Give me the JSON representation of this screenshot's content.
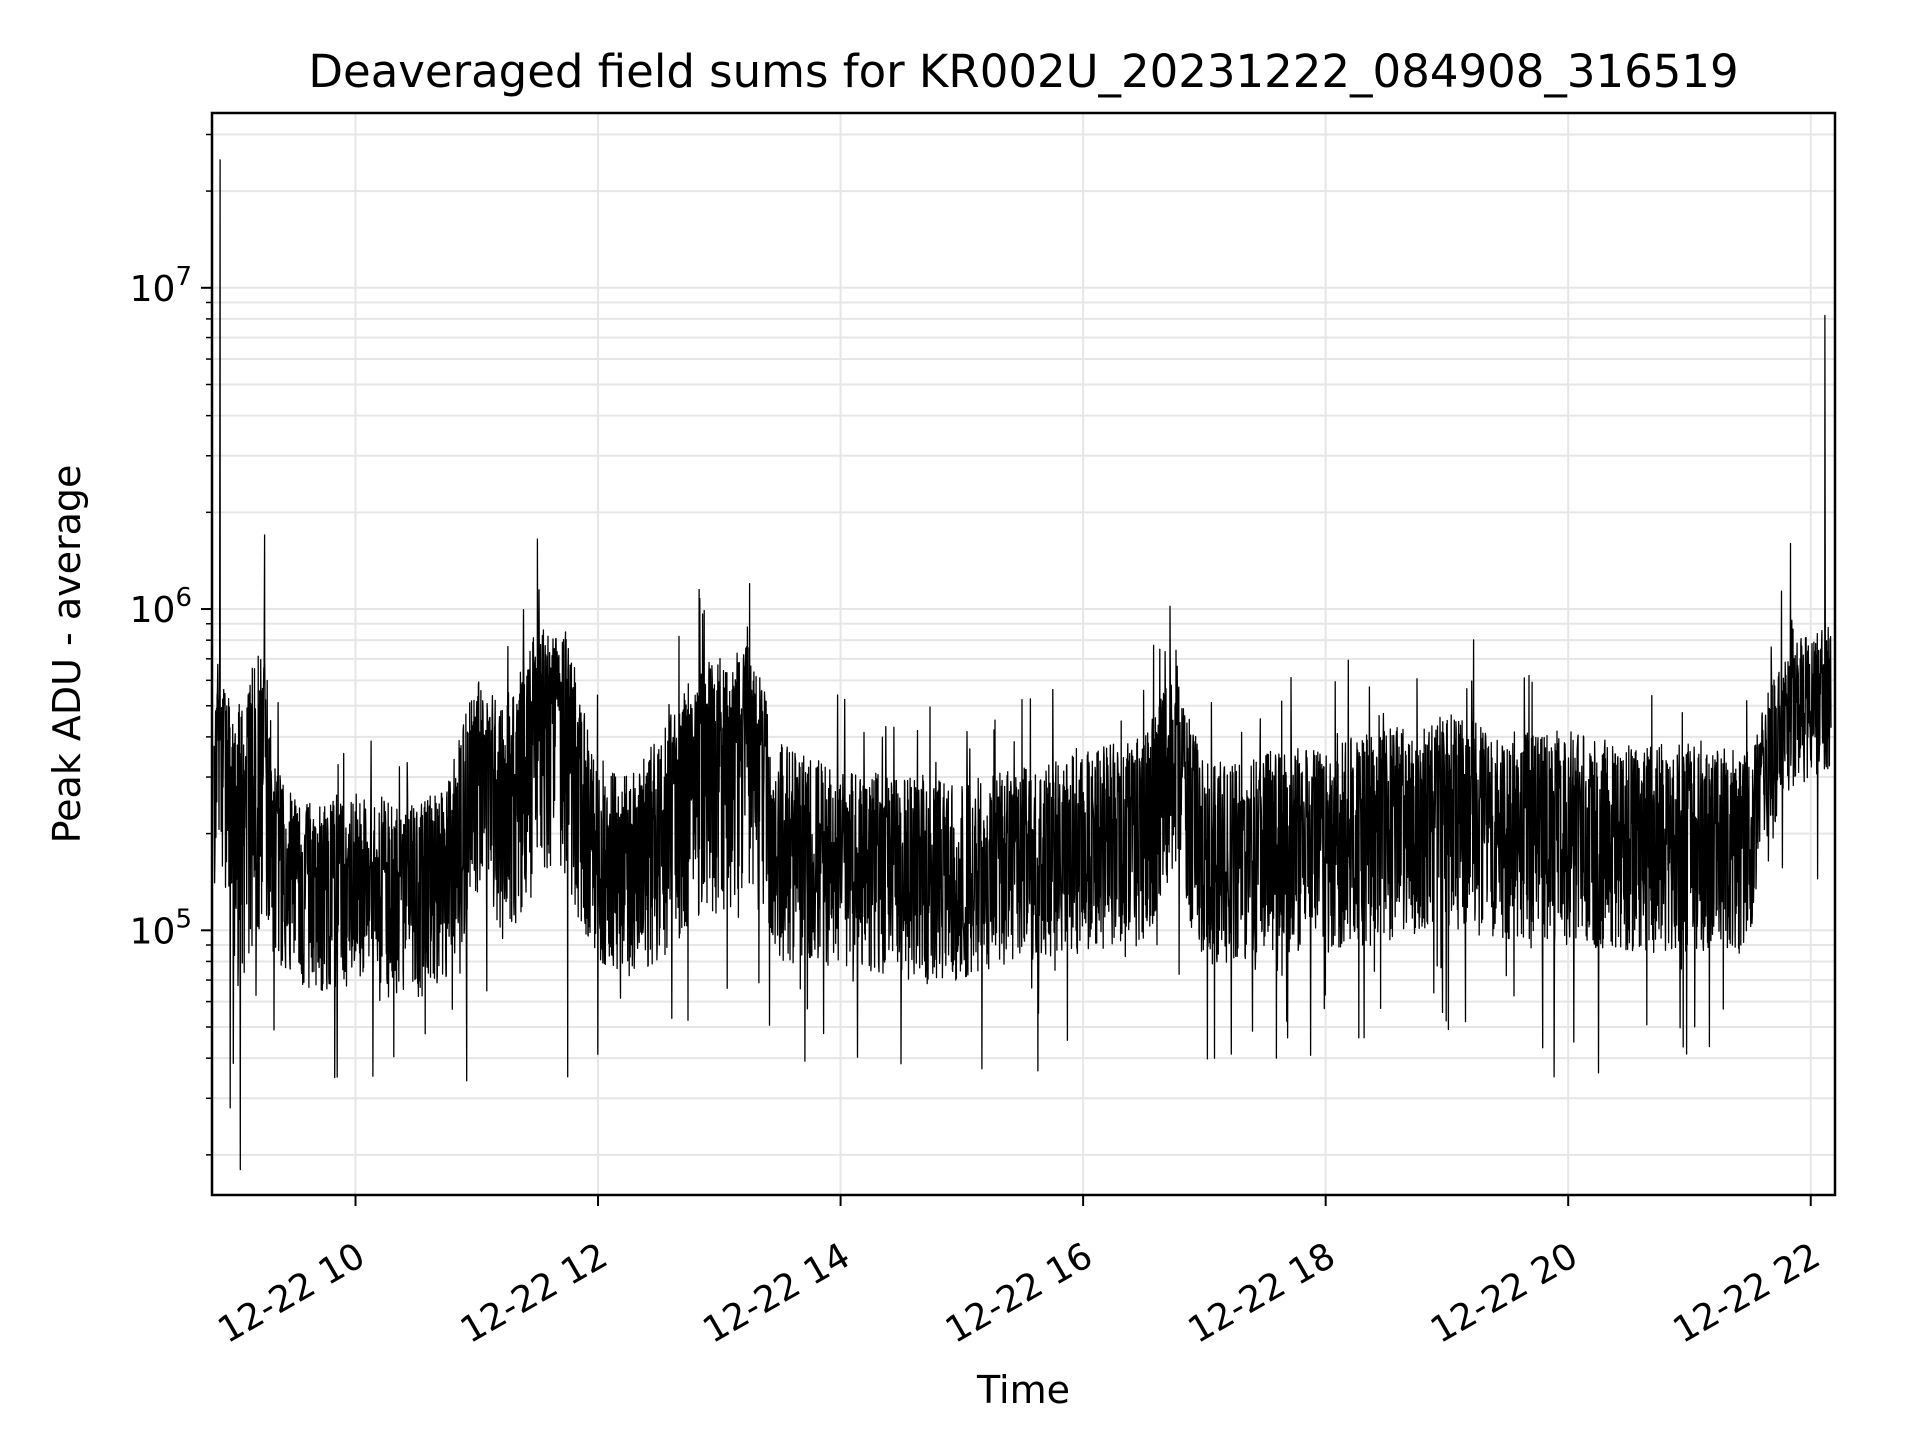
{
  "chart_data": {
    "type": "line",
    "title": "Deaveraged field sums for KR002U_20231222_084908_316519",
    "xlabel": "Time",
    "ylabel": "Peak ADU - average",
    "yscale": "log",
    "ylim": [
      15000,
      35000000
    ],
    "xlim": [
      "2023-12-22T08:49",
      "2023-12-22T22:12"
    ],
    "x_ticks": [
      "2023-12-22T10:00",
      "2023-12-22T12:00",
      "2023-12-22T14:00",
      "2023-12-22T16:00",
      "2023-12-22T18:00",
      "2023-12-22T20:00",
      "2023-12-22T22:00"
    ],
    "x_tick_labels": [
      "12-22 10",
      "12-22 12",
      "12-22 14",
      "12-22 16",
      "12-22 18",
      "12-22 20",
      "12-22 22"
    ],
    "y_ticks": [
      100000,
      1000000,
      10000000
    ],
    "y_tick_labels": [
      {
        "base": "10",
        "exp": "5"
      },
      {
        "base": "10",
        "exp": "6"
      },
      {
        "base": "10",
        "exp": "7"
      }
    ],
    "grid": true,
    "line_color": "#000000",
    "grid_color": "#e6e6e6",
    "series": [
      {
        "x": [
          "2023-12-22T08:50",
          "2023-12-22T08:55",
          "2023-12-22T09:00",
          "2023-12-22T09:05",
          "2023-12-22T09:10",
          "2023-12-22T09:15",
          "2023-12-22T09:20",
          "2023-12-22T09:30",
          "2023-12-22T09:45",
          "2023-12-22T10:00",
          "2023-12-22T10:15",
          "2023-12-22T10:30",
          "2023-12-22T10:45",
          "2023-12-22T11:00",
          "2023-12-22T11:15",
          "2023-12-22T11:30",
          "2023-12-22T11:45",
          "2023-12-22T12:00",
          "2023-12-22T12:15",
          "2023-12-22T12:30",
          "2023-12-22T12:45",
          "2023-12-22T13:00",
          "2023-12-22T13:15",
          "2023-12-22T13:30",
          "2023-12-22T14:00",
          "2023-12-22T14:30",
          "2023-12-22T15:00",
          "2023-12-22T15:30",
          "2023-12-22T16:00",
          "2023-12-22T16:30",
          "2023-12-22T16:45",
          "2023-12-22T17:00",
          "2023-12-22T17:30",
          "2023-12-22T18:00",
          "2023-12-22T18:30",
          "2023-12-22T19:00",
          "2023-12-22T19:30",
          "2023-12-22T20:00",
          "2023-12-22T20:30",
          "2023-12-22T21:00",
          "2023-12-22T21:30",
          "2023-12-22T21:45",
          "2023-12-22T22:00",
          "2023-12-22T22:10"
        ],
        "values": [
          300000,
          400000,
          250000,
          300000,
          450000,
          500000,
          180000,
          140000,
          130000,
          150000,
          140000,
          130000,
          160000,
          350000,
          250000,
          500000,
          450000,
          170000,
          150000,
          200000,
          300000,
          350000,
          400000,
          200000,
          170000,
          160000,
          150000,
          170000,
          190000,
          220000,
          400000,
          180000,
          190000,
          200000,
          230000,
          250000,
          220000,
          220000,
          200000,
          200000,
          190000,
          450000,
          500000,
          550000
        ],
        "band_low": [
          120000,
          150000,
          60000,
          70000,
          90000,
          110000,
          80000,
          70000,
          60000,
          70000,
          65000,
          60000,
          70000,
          120000,
          90000,
          150000,
          130000,
          80000,
          70000,
          80000,
          100000,
          110000,
          130000,
          80000,
          75000,
          70000,
          70000,
          80000,
          85000,
          90000,
          150000,
          75000,
          85000,
          85000,
          90000,
          100000,
          90000,
          90000,
          85000,
          85000,
          85000,
          250000,
          300000,
          320000
        ],
        "band_high": [
          550000,
          600000,
          500000,
          550000,
          700000,
          750000,
          320000,
          260000,
          250000,
          270000,
          260000,
          250000,
          280000,
          650000,
          500000,
          900000,
          800000,
          350000,
          300000,
          400000,
          600000,
          700000,
          800000,
          380000,
          320000,
          300000,
          290000,
          320000,
          360000,
          400000,
          650000,
          330000,
          360000,
          380000,
          420000,
          480000,
          420000,
          420000,
          380000,
          380000,
          360000,
          750000,
          850000,
          900000
        ],
        "spikes": [
          {
            "x": "2023-12-22T08:53",
            "value": 25000000
          },
          {
            "x": "2023-12-22T09:15",
            "value": 1700000
          },
          {
            "x": "2023-12-22T11:30",
            "value": 1650000
          },
          {
            "x": "2023-12-22T12:50",
            "value": 1150000
          },
          {
            "x": "2023-12-22T13:15",
            "value": 1200000
          },
          {
            "x": "2023-12-22T16:43",
            "value": 1020000
          },
          {
            "x": "2023-12-22T21:50",
            "value": 1600000
          },
          {
            "x": "2023-12-22T22:07",
            "value": 8200000
          }
        ],
        "dips": [
          {
            "x": "2023-12-22T08:58",
            "value": 28000
          },
          {
            "x": "2023-12-22T09:03",
            "value": 18000
          },
          {
            "x": "2023-12-22T10:55",
            "value": 34000
          },
          {
            "x": "2023-12-22T11:45",
            "value": 35000
          },
          {
            "x": "2023-12-22T17:05",
            "value": 40000
          },
          {
            "x": "2023-12-22T19:53",
            "value": 35000
          },
          {
            "x": "2023-12-22T20:15",
            "value": 36000
          }
        ]
      }
    ]
  }
}
